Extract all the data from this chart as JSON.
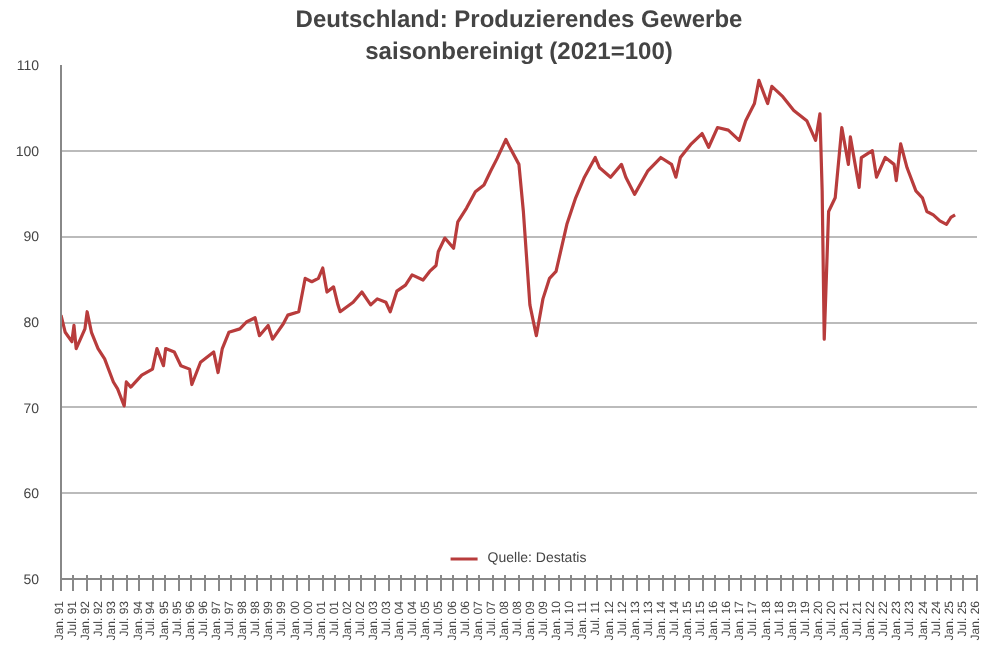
{
  "chart_data": {
    "type": "line",
    "title": "Deutschland: Produzierendes Gewerbe",
    "subtitle": "saisonbereinigt (2021=100)",
    "xlim": [
      "1991-01",
      "2026-01"
    ],
    "ylim": [
      50,
      110
    ],
    "yticks": [
      50,
      60,
      70,
      80,
      90,
      100,
      110
    ],
    "xticks": [
      {
        "value": "1991-01",
        "label": "Jan. 91"
      },
      {
        "value": "1991-07",
        "label": "Jul. 91"
      },
      {
        "value": "1992-01",
        "label": "Jan. 92"
      },
      {
        "value": "1992-07",
        "label": "Jul. 92"
      },
      {
        "value": "1993-01",
        "label": "Jan. 93"
      },
      {
        "value": "1993-07",
        "label": "Jul. 93"
      },
      {
        "value": "1994-01",
        "label": "Jan. 94"
      },
      {
        "value": "1994-07",
        "label": "Jul. 94"
      },
      {
        "value": "1995-01",
        "label": "Jan. 95"
      },
      {
        "value": "1995-07",
        "label": "Jul. 95"
      },
      {
        "value": "1996-01",
        "label": "Jan. 96"
      },
      {
        "value": "1996-07",
        "label": "Jul. 96"
      },
      {
        "value": "1997-01",
        "label": "Jan. 97"
      },
      {
        "value": "1997-07",
        "label": "Jul. 97"
      },
      {
        "value": "1998-01",
        "label": "Jan. 98"
      },
      {
        "value": "1998-07",
        "label": "Jul. 98"
      },
      {
        "value": "1999-01",
        "label": "Jan. 99"
      },
      {
        "value": "1999-07",
        "label": "Jul. 99"
      },
      {
        "value": "2000-01",
        "label": "Jan. 00"
      },
      {
        "value": "2000-07",
        "label": "Jul. 00"
      },
      {
        "value": "2001-01",
        "label": "Jan. 01"
      },
      {
        "value": "2001-07",
        "label": "Jul. 01"
      },
      {
        "value": "2002-01",
        "label": "Jan. 02"
      },
      {
        "value": "2002-07",
        "label": "Jul. 02"
      },
      {
        "value": "2003-01",
        "label": "Jan. 03"
      },
      {
        "value": "2003-07",
        "label": "Jul. 03"
      },
      {
        "value": "2004-01",
        "label": "Jan. 04"
      },
      {
        "value": "2004-07",
        "label": "Jul. 04"
      },
      {
        "value": "2005-01",
        "label": "Jan. 05"
      },
      {
        "value": "2005-07",
        "label": "Jul. 05"
      },
      {
        "value": "2006-01",
        "label": "Jan. 06"
      },
      {
        "value": "2006-07",
        "label": "Jul. 06"
      },
      {
        "value": "2007-01",
        "label": "Jan. 07"
      },
      {
        "value": "2007-07",
        "label": "Jul. 07"
      },
      {
        "value": "2008-01",
        "label": "Jan. 08"
      },
      {
        "value": "2008-07",
        "label": "Jul. 08"
      },
      {
        "value": "2009-01",
        "label": "Jan. 09"
      },
      {
        "value": "2009-07",
        "label": "Jul. 09"
      },
      {
        "value": "2010-01",
        "label": "Jan. 10"
      },
      {
        "value": "2010-07",
        "label": "Jul. 10"
      },
      {
        "value": "2011-01",
        "label": "Jan. 11"
      },
      {
        "value": "2011-07",
        "label": "Jul. 11"
      },
      {
        "value": "2012-01",
        "label": "Jan. 12"
      },
      {
        "value": "2012-07",
        "label": "Jul. 12"
      },
      {
        "value": "2013-01",
        "label": "Jan. 13"
      },
      {
        "value": "2013-07",
        "label": "Jul. 13"
      },
      {
        "value": "2014-01",
        "label": "Jan. 14"
      },
      {
        "value": "2014-07",
        "label": "Jul. 14"
      },
      {
        "value": "2015-01",
        "label": "Jan. 15"
      },
      {
        "value": "2015-07",
        "label": "Jul. 15"
      },
      {
        "value": "2016-01",
        "label": "Jan. 16"
      },
      {
        "value": "2016-07",
        "label": "Jul. 16"
      },
      {
        "value": "2017-01",
        "label": "Jan. 17"
      },
      {
        "value": "2017-07",
        "label": "Jul. 17"
      },
      {
        "value": "2018-01",
        "label": "Jan. 18"
      },
      {
        "value": "2018-07",
        "label": "Jul. 18"
      },
      {
        "value": "2019-01",
        "label": "Jan. 19"
      },
      {
        "value": "2019-07",
        "label": "Jul. 19"
      },
      {
        "value": "2020-01",
        "label": "Jan. 20"
      },
      {
        "value": "2020-07",
        "label": "Jul. 20"
      },
      {
        "value": "2021-01",
        "label": "Jan. 21"
      },
      {
        "value": "2021-07",
        "label": "Jul. 21"
      },
      {
        "value": "2022-01",
        "label": "Jan. 22"
      },
      {
        "value": "2022-07",
        "label": "Jul. 22"
      },
      {
        "value": "2023-01",
        "label": "Jan. 23"
      },
      {
        "value": "2023-07",
        "label": "Jul. 23"
      },
      {
        "value": "2024-01",
        "label": "Jan. 24"
      },
      {
        "value": "2024-07",
        "label": "Jul. 24"
      },
      {
        "value": "2025-01",
        "label": "Jan. 25"
      },
      {
        "value": "2025-07",
        "label": "Jul. 25"
      },
      {
        "value": "2026-01",
        "label": "Jan. 26"
      }
    ],
    "grid": "y",
    "legend": "bottom",
    "marker": "none",
    "line_style": "solid",
    "series": [
      {
        "name": "Quelle: Destatis",
        "color": "#b83c3c",
        "x": [
          "1991-01",
          "1991-03",
          "1991-06",
          "1991-07",
          "1991-08",
          "1991-12",
          "1992-01",
          "1992-03",
          "1992-06",
          "1992-09",
          "1993-01",
          "1993-03",
          "1993-06",
          "1993-07",
          "1993-09",
          "1994-02",
          "1994-07",
          "1994-09",
          "1994-12",
          "1995-01",
          "1995-05",
          "1995-08",
          "1995-12",
          "1996-01",
          "1996-05",
          "1996-11",
          "1997-01",
          "1997-03",
          "1997-06",
          "1997-11",
          "1998-02",
          "1998-06",
          "1998-08",
          "1998-12",
          "1999-02",
          "1999-07",
          "1999-09",
          "2000-02",
          "2000-05",
          "2000-08",
          "2000-11",
          "2001-01",
          "2001-03",
          "2001-06",
          "2001-08",
          "2001-09",
          "2002-03",
          "2002-07",
          "2002-11",
          "2003-02",
          "2003-06",
          "2003-08",
          "2003-11",
          "2004-03",
          "2004-06",
          "2004-11",
          "2005-02",
          "2005-05",
          "2005-06",
          "2005-09",
          "2006-01",
          "2006-03",
          "2006-07",
          "2006-11",
          "2007-03",
          "2007-06",
          "2007-09",
          "2008-01",
          "2008-03",
          "2008-07",
          "2008-09",
          "2008-12",
          "2009-03",
          "2009-06",
          "2009-09",
          "2009-12",
          "2010-05",
          "2010-09",
          "2011-01",
          "2011-06",
          "2011-08",
          "2012-01",
          "2012-06",
          "2012-08",
          "2012-12",
          "2013-06",
          "2013-12",
          "2014-05",
          "2014-07",
          "2014-09",
          "2015-02",
          "2015-07",
          "2015-10",
          "2016-02",
          "2016-07",
          "2016-12",
          "2017-03",
          "2017-07",
          "2017-09",
          "2018-01",
          "2018-03",
          "2018-08",
          "2019-01",
          "2019-07",
          "2019-11",
          "2020-01",
          "2020-02",
          "2020-03",
          "2020-05",
          "2020-08",
          "2020-11",
          "2021-02",
          "2021-03",
          "2021-07",
          "2021-08",
          "2022-01",
          "2022-03",
          "2022-07",
          "2022-11",
          "2022-12",
          "2023-02",
          "2023-05",
          "2023-09",
          "2023-12",
          "2024-02",
          "2024-05",
          "2024-08",
          "2024-11",
          "2025-01",
          "2025-03"
        ],
        "values": [
          80.8,
          78.8,
          77.7,
          79.6,
          76.9,
          79.2,
          81.2,
          78.8,
          76.9,
          75.7,
          73.0,
          72.2,
          70.2,
          73.0,
          72.4,
          73.8,
          74.5,
          76.9,
          74.9,
          76.9,
          76.5,
          74.9,
          74.5,
          72.7,
          75.3,
          76.5,
          74.1,
          76.9,
          78.8,
          79.2,
          80.0,
          80.5,
          78.4,
          79.6,
          78.0,
          79.8,
          80.8,
          81.2,
          85.1,
          84.7,
          85.1,
          86.3,
          83.5,
          84.1,
          82.0,
          81.2,
          82.3,
          83.5,
          82.0,
          82.7,
          82.3,
          81.2,
          83.6,
          84.3,
          85.5,
          84.9,
          85.9,
          86.6,
          88.2,
          89.8,
          88.6,
          91.7,
          93.3,
          95.2,
          96.0,
          97.6,
          99.1,
          101.3,
          100.3,
          98.4,
          92.9,
          82.0,
          78.4,
          82.7,
          85.1,
          85.9,
          91.4,
          94.5,
          96.9,
          99.2,
          98.0,
          96.9,
          98.4,
          96.9,
          94.9,
          97.6,
          99.2,
          98.4,
          96.9,
          99.2,
          100.8,
          102.0,
          100.4,
          102.7,
          102.4,
          101.2,
          103.5,
          105.5,
          108.2,
          105.5,
          107.5,
          106.3,
          104.7,
          103.5,
          101.2,
          104.3,
          95.3,
          78.0,
          92.9,
          94.5,
          102.7,
          98.4,
          101.6,
          95.7,
          99.2,
          100.0,
          96.9,
          99.2,
          98.4,
          96.5,
          100.8,
          98.0,
          95.3,
          94.5,
          92.9,
          92.5,
          91.8,
          91.4,
          92.2,
          92.5
        ]
      }
    ]
  }
}
